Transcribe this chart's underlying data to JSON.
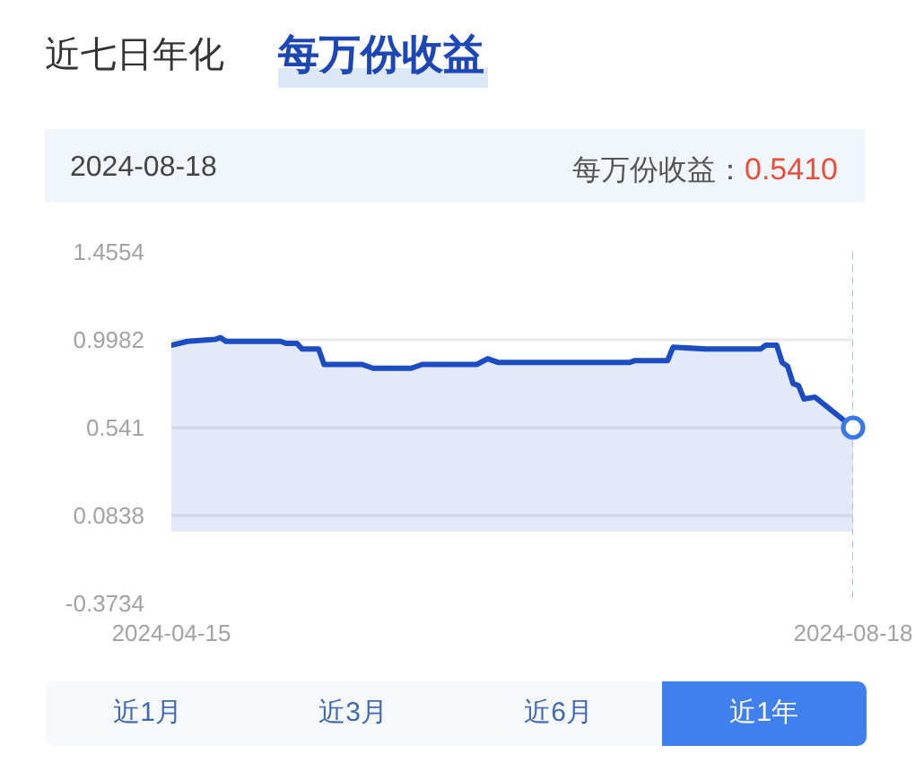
{
  "chart_data": {
    "type": "area",
    "title": "每万份收益",
    "annotations": [
      "近七日年化",
      "2024-08-18",
      "每万份收益：",
      "0.5410",
      "近1月",
      "近3月",
      "近6月",
      "近1年"
    ],
    "x": [
      "2024-04-15",
      "2024-04-18",
      "2024-04-23",
      "2024-04-24",
      "2024-04-25",
      "2024-05-05",
      "2024-05-06",
      "2024-05-08",
      "2024-05-09",
      "2024-05-12",
      "2024-05-13",
      "2024-05-20",
      "2024-05-22",
      "2024-05-29",
      "2024-05-31",
      "2024-06-08",
      "2024-06-10",
      "2024-06-12",
      "2024-06-14",
      "2024-06-27",
      "2024-07-08",
      "2024-07-09",
      "2024-07-15",
      "2024-07-16",
      "2024-07-22",
      "2024-08-01",
      "2024-08-02",
      "2024-08-04",
      "2024-08-05",
      "2024-08-06",
      "2024-08-07",
      "2024-08-08",
      "2024-08-09",
      "2024-08-11",
      "2024-08-18"
    ],
    "series": [
      {
        "color": "#1c4cc2",
        "values": [
          0.97,
          0.99,
          1.0,
          1.01,
          0.99,
          0.99,
          0.98,
          0.98,
          0.95,
          0.95,
          0.87,
          0.87,
          0.85,
          0.85,
          0.87,
          0.87,
          0.87,
          0.9,
          0.88,
          0.88,
          0.88,
          0.89,
          0.89,
          0.96,
          0.95,
          0.95,
          0.97,
          0.97,
          0.88,
          0.86,
          0.77,
          0.76,
          0.69,
          0.7,
          0.541
        ]
      },
      {
        "type": "scatter",
        "color": "#3a78e6",
        "marker": "circle",
        "x": [
          "2024-08-18"
        ],
        "values": [
          0.541
        ]
      }
    ],
    "xlim": [
      "2024-04-15",
      "2024-08-18"
    ],
    "xticks": [
      "2024-04-15",
      "2024-08-18"
    ],
    "ylim": [
      -0.3734,
      1.4554
    ],
    "yticks": [
      -0.3734,
      0.0838,
      0.541,
      0.9982,
      1.4554
    ],
    "grid": "y",
    "ref_lines": [
      {
        "axis": "x",
        "value": "2024-08-18",
        "color": "#a9c0e8",
        "line_style": "dashed"
      }
    ]
  }
}
